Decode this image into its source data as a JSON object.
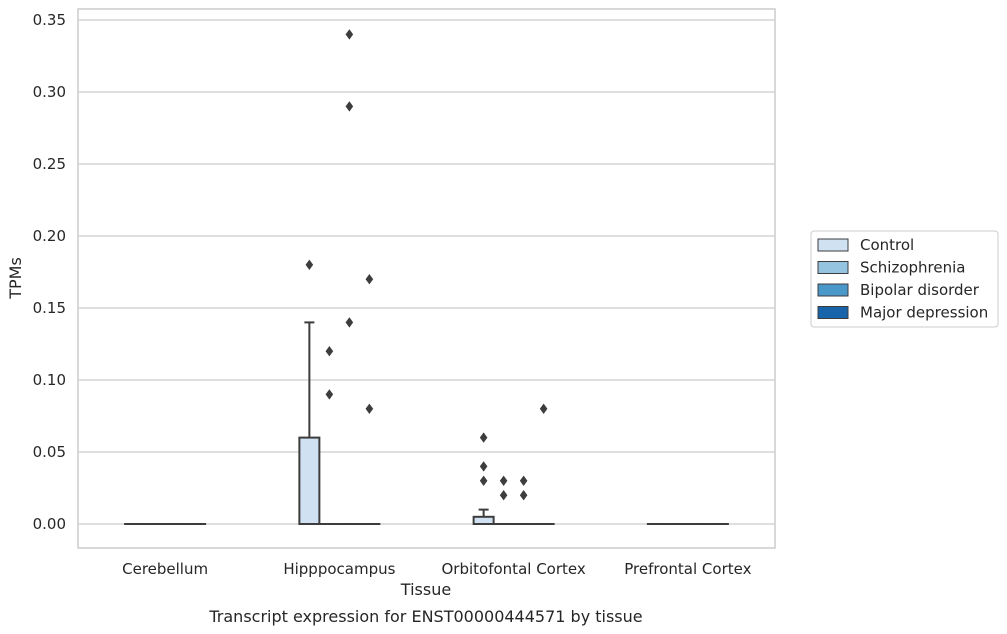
{
  "chart_data": {
    "type": "box",
    "title": "",
    "caption": "Transcript expression for ENST00000444571 by tissue",
    "xlabel": "Tissue",
    "ylabel": "TPMs",
    "ylim": [
      -0.017,
      0.357
    ],
    "yticks": [
      "0.00",
      "0.05",
      "0.10",
      "0.15",
      "0.20",
      "0.25",
      "0.30",
      "0.35"
    ],
    "categories": [
      "Cerebellum",
      "Hipppocampus",
      "Orbitofontal Cortex",
      "Prefrontal Cortex"
    ],
    "grid": true,
    "legend_position": "right",
    "series": [
      {
        "name": "Control",
        "color": "#d0e1f2",
        "boxes": [
          {
            "q1": 0,
            "median": 0,
            "q3": 0,
            "whisker_low": 0,
            "whisker_high": 0,
            "outliers": []
          },
          {
            "q1": 0,
            "median": 0,
            "q3": 0.06,
            "whisker_low": 0,
            "whisker_high": 0.14,
            "outliers": [
              0.18
            ]
          },
          {
            "q1": 0,
            "median": 0,
            "q3": 0.005,
            "whisker_low": 0,
            "whisker_high": 0.01,
            "outliers": [
              0.03,
              0.04,
              0.06
            ]
          },
          {
            "q1": 0,
            "median": 0,
            "q3": 0,
            "whisker_low": 0,
            "whisker_high": 0,
            "outliers": []
          }
        ]
      },
      {
        "name": "Schizophrenia",
        "color": "#94c4df",
        "boxes": [
          {
            "q1": 0,
            "median": 0,
            "q3": 0,
            "whisker_low": 0,
            "whisker_high": 0,
            "outliers": []
          },
          {
            "q1": 0,
            "median": 0,
            "q3": 0,
            "whisker_low": 0,
            "whisker_high": 0,
            "outliers": [
              0.09,
              0.12
            ]
          },
          {
            "q1": 0,
            "median": 0,
            "q3": 0,
            "whisker_low": 0,
            "whisker_high": 0,
            "outliers": [
              0.02,
              0.03
            ]
          },
          {
            "q1": 0,
            "median": 0,
            "q3": 0,
            "whisker_low": 0,
            "whisker_high": 0,
            "outliers": []
          }
        ]
      },
      {
        "name": "Bipolar disorder",
        "color": "#4a98c9",
        "boxes": [
          {
            "q1": 0,
            "median": 0,
            "q3": 0,
            "whisker_low": 0,
            "whisker_high": 0,
            "outliers": []
          },
          {
            "q1": 0,
            "median": 0,
            "q3": 0,
            "whisker_low": 0,
            "whisker_high": 0,
            "outliers": [
              0.14,
              0.29,
              0.34
            ]
          },
          {
            "q1": 0,
            "median": 0,
            "q3": 0,
            "whisker_low": 0,
            "whisker_high": 0,
            "outliers": [
              0.02,
              0.03
            ]
          },
          {
            "q1": 0,
            "median": 0,
            "q3": 0,
            "whisker_low": 0,
            "whisker_high": 0,
            "outliers": []
          }
        ]
      },
      {
        "name": "Major depression",
        "color": "#1764ab",
        "boxes": [
          {
            "q1": 0,
            "median": 0,
            "q3": 0,
            "whisker_low": 0,
            "whisker_high": 0,
            "outliers": []
          },
          {
            "q1": 0,
            "median": 0,
            "q3": 0,
            "whisker_low": 0,
            "whisker_high": 0,
            "outliers": [
              0.08,
              0.17
            ]
          },
          {
            "q1": 0,
            "median": 0,
            "q3": 0,
            "whisker_low": 0,
            "whisker_high": 0,
            "outliers": [
              0.08
            ]
          },
          {
            "q1": 0,
            "median": 0,
            "q3": 0,
            "whisker_low": 0,
            "whisker_high": 0,
            "outliers": []
          }
        ]
      }
    ]
  }
}
